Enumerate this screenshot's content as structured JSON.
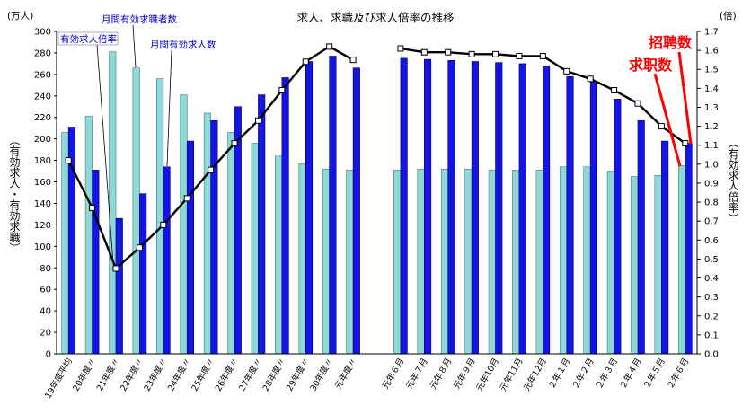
{
  "chart_data": {
    "type": "bar",
    "title": "求人、求職及び求人倍率の推移",
    "ylabel": "（有効求人・有効求職）",
    "ylabel_right": "（有効求人倍率）",
    "yunit": "(万人)",
    "yunit_right": "(倍)",
    "ylim": [
      0,
      300
    ],
    "ylim_right": [
      0,
      1.7
    ],
    "yticks_left": [
      "0",
      "20",
      "40",
      "60",
      "80",
      "100",
      "120",
      "140",
      "160",
      "180",
      "200",
      "220",
      "240",
      "260",
      "280",
      "300"
    ],
    "yticks_right": [
      "0.0",
      "0.1",
      "0.2",
      "0.3",
      "0.4",
      "0.5",
      "0.6",
      "0.7",
      "0.8",
      "0.9",
      "1.0",
      "1.1",
      "1.2",
      "1.3",
      "1.4",
      "1.5",
      "1.6",
      "1.7"
    ],
    "grid": false,
    "category_groups": [
      [
        "19年度平均",
        "20年度〃",
        "21年度〃",
        "22年度〃",
        "23年度〃",
        "24年度〃",
        "25年度〃",
        "26年度〃",
        "27年度〃",
        "28年度〃",
        "29年度〃",
        "30年度〃",
        "元年度〃"
      ],
      [
        "元年６月",
        "元年７月",
        "元年８月",
        "元年９月",
        "元年10月",
        "元年11月",
        "元年12月",
        "２年１月",
        "２年２月",
        "２年３月",
        "２年４月",
        "２年５月",
        "２年６月"
      ]
    ],
    "series": [
      {
        "name": "月間有効求職者数",
        "type": "bar",
        "axis": "left",
        "color": "#8fd8d8",
        "values": [
          [
            206,
            221,
            281,
            266,
            256,
            241,
            224,
            206,
            196,
            184,
            177,
            172,
            171
          ],
          [
            171,
            172,
            172,
            172,
            171,
            171,
            171,
            174,
            174,
            170,
            165,
            166,
            175
          ]
        ]
      },
      {
        "name": "月間有効求人数",
        "type": "bar",
        "axis": "left",
        "color": "#1414e6",
        "values": [
          [
            211,
            171,
            126,
            149,
            174,
            198,
            217,
            230,
            241,
            257,
            272,
            277,
            266
          ],
          [
            275,
            274,
            273,
            272,
            271,
            270,
            268,
            258,
            254,
            237,
            217,
            198,
            196
          ]
        ]
      },
      {
        "name": "有効求人倍率",
        "type": "line",
        "axis": "right",
        "color": "#000000",
        "values": [
          [
            1.02,
            0.77,
            0.45,
            0.56,
            0.68,
            0.82,
            0.97,
            1.11,
            1.23,
            1.39,
            1.54,
            1.62,
            1.55
          ],
          [
            1.61,
            1.59,
            1.59,
            1.58,
            1.58,
            1.57,
            1.57,
            1.49,
            1.45,
            1.39,
            1.32,
            1.2,
            1.11
          ]
        ]
      }
    ],
    "annotations": [
      {
        "text": "招聘数",
        "color": "#ff0000"
      },
      {
        "text": "求职数",
        "color": "#ff0000"
      }
    ]
  }
}
